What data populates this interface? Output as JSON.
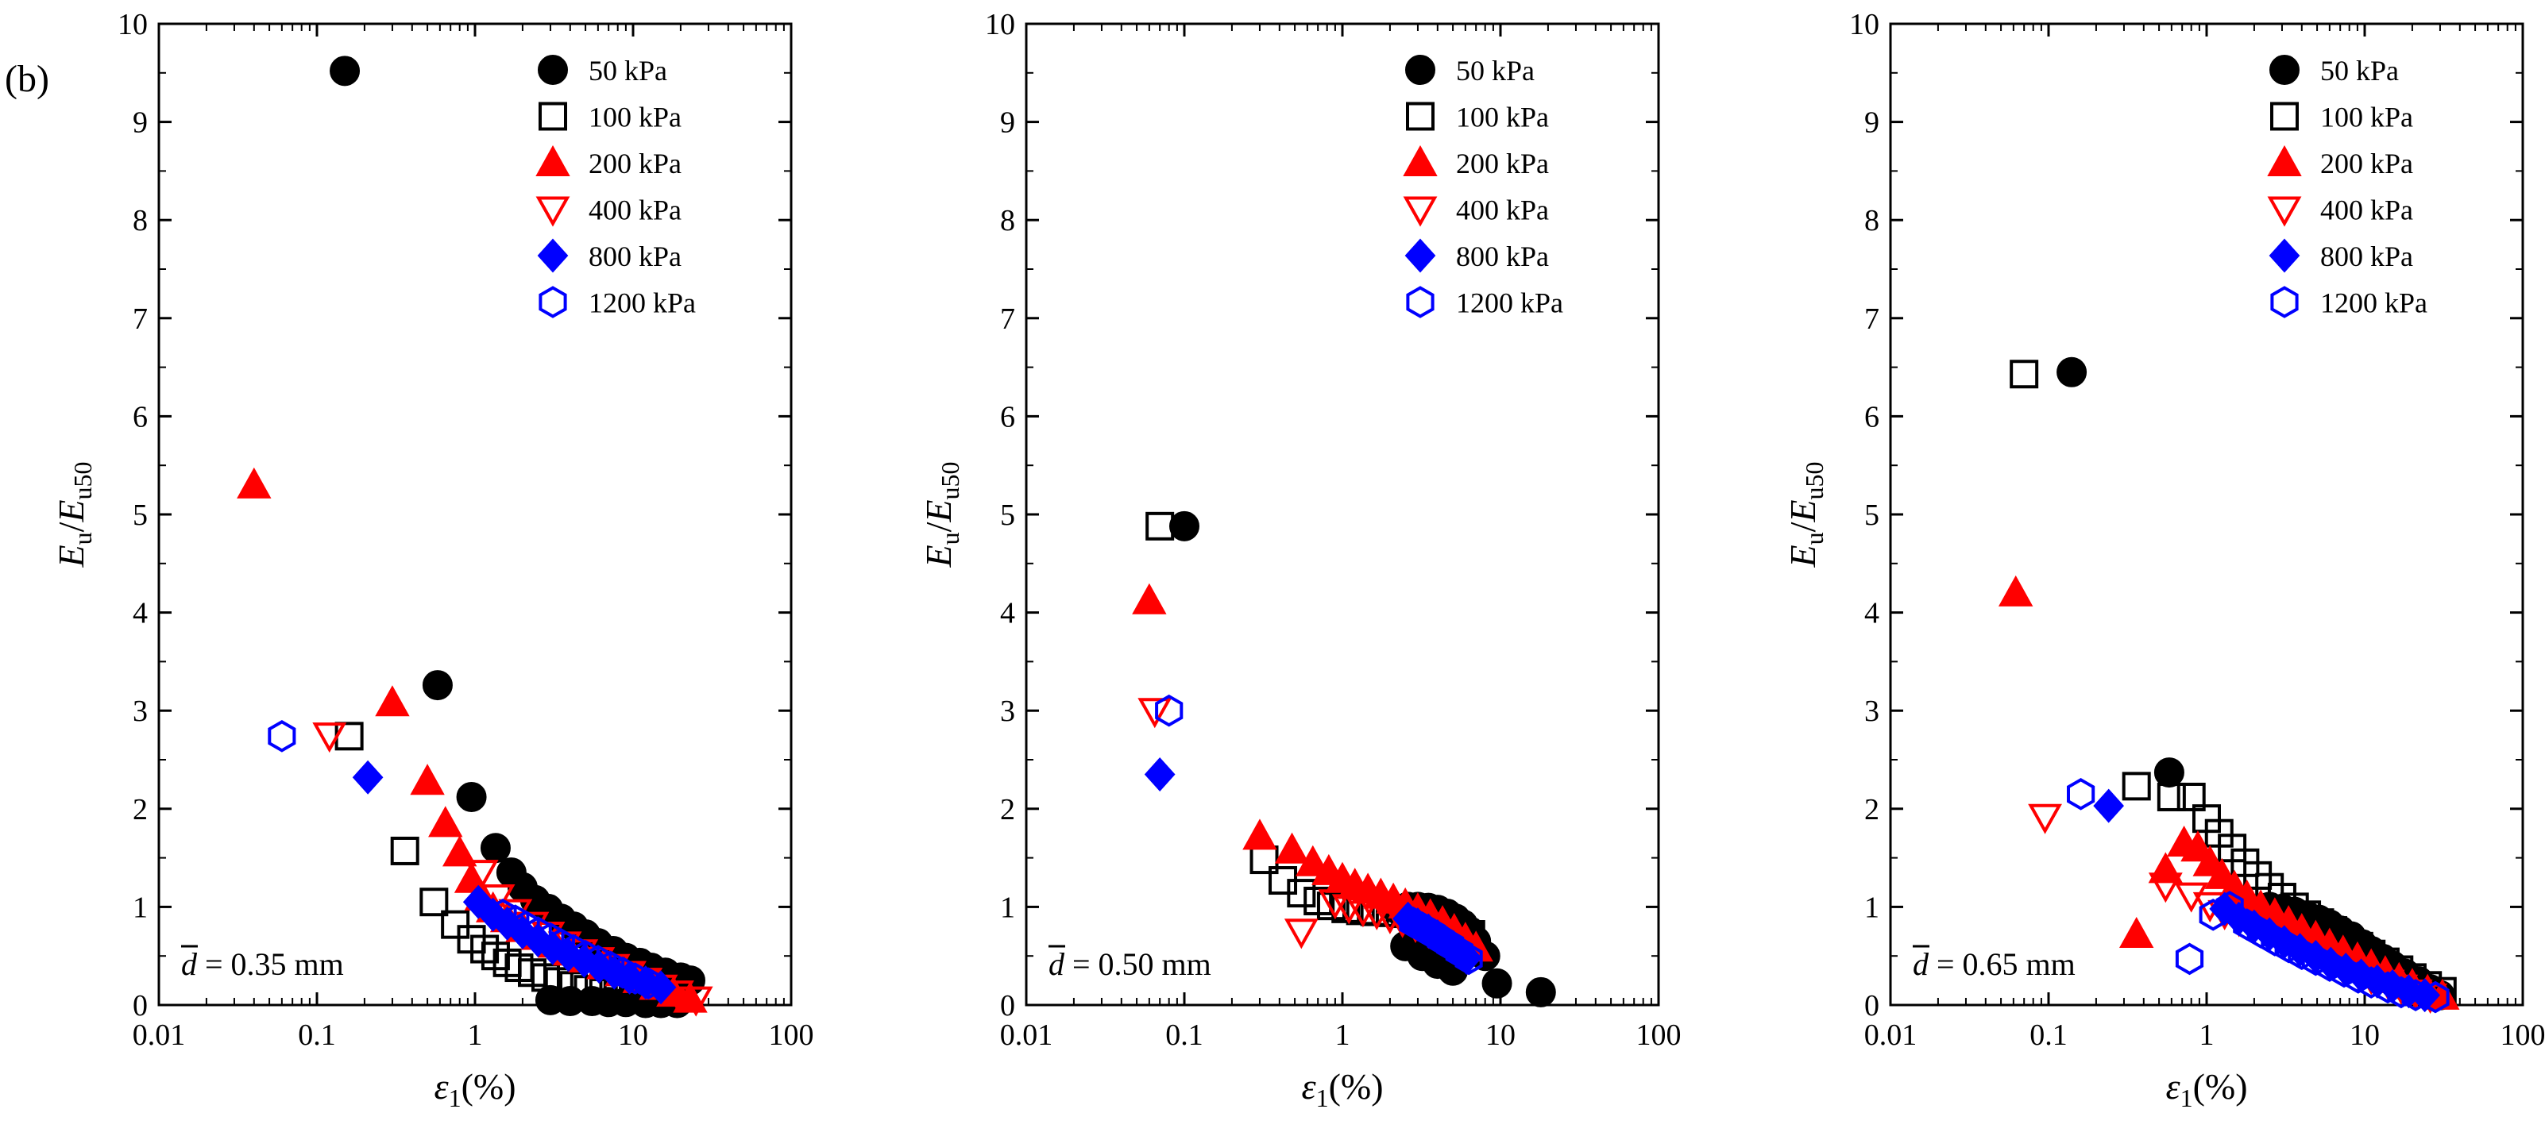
{
  "panel_label": "(b)",
  "chart_data": [
    {
      "type": "scatter",
      "annotation": {
        "symbol": "d",
        "text": " = 0.35 mm"
      },
      "xlabel": {
        "symbol": "ε",
        "sub": "1",
        "rest": "(%)"
      },
      "ylabel": {
        "main": "E",
        "sub1": "u",
        "mid": "/",
        "main2": "E",
        "sub2": "u50"
      },
      "x_scale": "log",
      "xlim": [
        0.01,
        100
      ],
      "ylim": [
        0,
        10
      ],
      "x_ticks": [
        "0.01",
        "0.1",
        "1",
        "10",
        "100"
      ],
      "y_ticks": [
        "0",
        "1",
        "2",
        "3",
        "4",
        "5",
        "6",
        "7",
        "8",
        "9",
        "10"
      ],
      "legend_position": "top-right",
      "series": [
        {
          "name": "50 kPa",
          "marker": "circle-filled",
          "color": "#000000",
          "x": [
            0.15,
            0.58,
            0.95,
            1.35,
            1.7,
            2.0,
            2.4,
            2.9,
            3.5,
            4.2,
            5.0,
            6.0,
            7.5,
            9.0,
            11,
            13,
            16,
            20,
            23,
            3.0,
            4.0,
            5.5,
            7.0,
            9.0,
            12,
            15,
            19
          ],
          "y": [
            9.52,
            3.26,
            2.12,
            1.6,
            1.35,
            1.2,
            1.07,
            0.98,
            0.88,
            0.8,
            0.72,
            0.63,
            0.55,
            0.48,
            0.43,
            0.38,
            0.33,
            0.28,
            0.25,
            0.05,
            0.04,
            0.04,
            0.03,
            0.03,
            0.02,
            0.02,
            0.02
          ]
        },
        {
          "name": "100 kPa",
          "marker": "square-open",
          "color": "#000000",
          "x": [
            0.16,
            0.36,
            0.55,
            0.75,
            0.95,
            1.15,
            1.35,
            1.6,
            1.9,
            2.3,
            2.8,
            3.4,
            4.2,
            5.2,
            6.5,
            8.0,
            10
          ],
          "y": [
            2.74,
            1.57,
            1.05,
            0.82,
            0.67,
            0.57,
            0.5,
            0.43,
            0.38,
            0.33,
            0.28,
            0.24,
            0.2,
            0.16,
            0.13,
            0.1,
            0.08
          ]
        },
        {
          "name": "200 kPa",
          "marker": "triangle-up-filled",
          "color": "#ff0000",
          "x": [
            0.04,
            0.3,
            0.5,
            0.65,
            0.8,
            0.95,
            1.1,
            1.3,
            1.6,
            2.0,
            2.5,
            3.2,
            4.0,
            5.0,
            6.5,
            8.5,
            11,
            14,
            18,
            23
          ],
          "y": [
            5.3,
            3.08,
            2.28,
            1.85,
            1.55,
            1.28,
            1.1,
            0.98,
            0.88,
            0.78,
            0.7,
            0.62,
            0.54,
            0.47,
            0.4,
            0.33,
            0.26,
            0.19,
            0.12,
            0.06
          ]
        },
        {
          "name": "400 kPa",
          "marker": "triangle-down-open",
          "color": "#ff0000",
          "x": [
            0.12,
            1.1,
            1.4,
            1.8,
            2.3,
            2.9,
            3.7,
            4.7,
            6.0,
            7.5,
            9.5,
            12,
            15,
            19,
            25
          ],
          "y": [
            2.75,
            1.35,
            1.1,
            0.95,
            0.82,
            0.72,
            0.62,
            0.54,
            0.46,
            0.39,
            0.32,
            0.25,
            0.18,
            0.12,
            0.06
          ]
        },
        {
          "name": "800 kPa",
          "marker": "diamond-filled",
          "color": "#0000ff",
          "x": [
            0.21,
            1.05,
            1.3,
            1.6,
            2.0,
            2.5,
            3.1,
            3.9,
            4.9,
            6.1,
            7.6,
            9.5,
            12,
            15
          ],
          "y": [
            2.32,
            1.05,
            0.92,
            0.83,
            0.74,
            0.66,
            0.58,
            0.51,
            0.45,
            0.39,
            0.33,
            0.28,
            0.23,
            0.18
          ]
        },
        {
          "name": "1200 kPa",
          "marker": "hexagon-open",
          "color": "#0000ff",
          "x": [
            0.06,
            1.5,
            1.8,
            2.1,
            2.5,
            3.0,
            3.5,
            4.2,
            5.0,
            6.0,
            7.2,
            8.6,
            10.3,
            12.5
          ],
          "y": [
            2.74,
            0.92,
            0.86,
            0.8,
            0.74,
            0.68,
            0.62,
            0.56,
            0.5,
            0.45,
            0.39,
            0.33,
            0.27,
            0.22
          ]
        }
      ]
    },
    {
      "type": "scatter",
      "annotation": {
        "symbol": "d",
        "text": " = 0.50 mm"
      },
      "xlabel": {
        "symbol": "ε",
        "sub": "1",
        "rest": "(%)"
      },
      "ylabel": {
        "main": "E",
        "sub1": "u",
        "mid": "/",
        "main2": "E",
        "sub2": "u50"
      },
      "x_scale": "log",
      "xlim": [
        0.01,
        100
      ],
      "ylim": [
        0,
        10
      ],
      "x_ticks": [
        "0.01",
        "0.1",
        "1",
        "10",
        "100"
      ],
      "y_ticks": [
        "0",
        "1",
        "2",
        "3",
        "4",
        "5",
        "6",
        "7",
        "8",
        "9",
        "10"
      ],
      "legend_position": "top-right",
      "series": [
        {
          "name": "50 kPa",
          "marker": "circle-filled",
          "color": "#000000",
          "x": [
            0.1,
            2.2,
            2.6,
            3.0,
            3.5,
            4.0,
            4.6,
            5.2,
            5.8,
            6.4,
            7.0,
            8.0,
            9.5,
            18,
            2.5,
            3.2,
            4.0,
            5.0
          ],
          "y": [
            4.88,
            0.98,
            1.0,
            1.0,
            0.99,
            0.97,
            0.93,
            0.88,
            0.82,
            0.75,
            0.65,
            0.5,
            0.22,
            0.13,
            0.6,
            0.5,
            0.42,
            0.35
          ]
        },
        {
          "name": "100 kPa",
          "marker": "square-open",
          "color": "#000000",
          "x": [
            0.07,
            0.32,
            0.42,
            0.55,
            0.7,
            0.85,
            1.05,
            1.3,
            1.6,
            2.0,
            2.5,
            3.1,
            3.8,
            4.6,
            5.5,
            6.5
          ],
          "y": [
            4.88,
            1.48,
            1.27,
            1.14,
            1.06,
            1.01,
            0.98,
            0.96,
            0.95,
            0.94,
            0.93,
            0.9,
            0.86,
            0.82,
            0.77,
            0.72
          ]
        },
        {
          "name": "200 kPa",
          "marker": "triangle-up-filled",
          "color": "#ff0000",
          "x": [
            0.06,
            0.3,
            0.48,
            0.65,
            0.82,
            1.0,
            1.2,
            1.45,
            1.75,
            2.1,
            2.5,
            3.0,
            3.6,
            4.3,
            5.1,
            6.0,
            7.0
          ],
          "y": [
            4.12,
            1.72,
            1.58,
            1.45,
            1.36,
            1.28,
            1.22,
            1.17,
            1.12,
            1.07,
            1.02,
            0.97,
            0.91,
            0.84,
            0.76,
            0.67,
            0.58
          ]
        },
        {
          "name": "400 kPa",
          "marker": "triangle-down-open",
          "color": "#ff0000",
          "x": [
            0.065,
            0.55,
            0.9,
            1.1,
            1.35,
            1.65,
            2.0,
            2.4,
            2.9,
            3.5,
            4.2,
            5.0,
            6.0
          ],
          "y": [
            3.0,
            0.75,
            1.05,
            1.0,
            0.97,
            0.94,
            0.9,
            0.86,
            0.81,
            0.75,
            0.68,
            0.6,
            0.51
          ]
        },
        {
          "name": "800 kPa",
          "marker": "diamond-filled",
          "color": "#0000ff",
          "x": [
            0.07,
            2.6,
            3.0,
            3.5,
            4.0,
            4.6,
            5.3,
            6.1
          ],
          "y": [
            2.35,
            0.88,
            0.82,
            0.76,
            0.7,
            0.63,
            0.56,
            0.48
          ]
        },
        {
          "name": "1200 kPa",
          "marker": "hexagon-open",
          "color": "#0000ff",
          "x": [
            0.08,
            2.8,
            3.2,
            3.7,
            4.2,
            4.8,
            5.5,
            6.3
          ],
          "y": [
            3.0,
            0.84,
            0.79,
            0.73,
            0.67,
            0.61,
            0.54,
            0.47
          ]
        }
      ]
    },
    {
      "type": "scatter",
      "annotation": {
        "symbol": "d",
        "text": " = 0.65 mm"
      },
      "xlabel": {
        "symbol": "ε",
        "sub": "1",
        "rest": "(%)"
      },
      "ylabel": {
        "main": "E",
        "sub1": "u",
        "mid": "/",
        "main2": "E",
        "sub2": "u50"
      },
      "x_scale": "log",
      "xlim": [
        0.01,
        100
      ],
      "ylim": [
        0,
        10
      ],
      "x_ticks": [
        "0.01",
        "0.1",
        "1",
        "10",
        "100"
      ],
      "y_ticks": [
        "0",
        "1",
        "2",
        "3",
        "4",
        "5",
        "6",
        "7",
        "8",
        "9",
        "10"
      ],
      "legend_position": "top-right",
      "series": [
        {
          "name": "50 kPa",
          "marker": "circle-filled",
          "color": "#000000",
          "x": [
            0.14,
            0.58,
            2.5,
            3.0,
            3.6,
            4.3,
            5.1,
            6.0,
            7.0,
            8.2,
            9.6,
            11,
            13,
            15,
            18,
            22,
            26,
            30
          ],
          "y": [
            6.45,
            2.37,
            1.0,
            0.98,
            0.95,
            0.91,
            0.87,
            0.82,
            0.76,
            0.7,
            0.62,
            0.55,
            0.47,
            0.4,
            0.32,
            0.24,
            0.16,
            0.1
          ]
        },
        {
          "name": "100 kPa",
          "marker": "square-open",
          "color": "#000000",
          "x": [
            0.07,
            0.36,
            0.6,
            0.8,
            1.0,
            1.2,
            1.45,
            1.75,
            2.1,
            2.5,
            3.0,
            3.6,
            4.3,
            5.2,
            6.3,
            7.6,
            9.2,
            11,
            13.5,
            16.5,
            20,
            25,
            31
          ],
          "y": [
            6.43,
            2.23,
            2.12,
            2.12,
            1.9,
            1.75,
            1.6,
            1.45,
            1.32,
            1.2,
            1.1,
            1.0,
            0.92,
            0.84,
            0.76,
            0.68,
            0.6,
            0.52,
            0.44,
            0.36,
            0.28,
            0.2,
            0.14
          ]
        },
        {
          "name": "200 kPa",
          "marker": "triangle-up-filled",
          "color": "#ff0000",
          "x": [
            0.062,
            0.36,
            0.55,
            0.72,
            0.88,
            1.05,
            1.25,
            1.5,
            1.8,
            2.2,
            2.7,
            3.3,
            4.0,
            4.9,
            6.0,
            7.3,
            9.0,
            11,
            13.5,
            16.5,
            20,
            25,
            31
          ],
          "y": [
            4.2,
            0.72,
            1.38,
            1.65,
            1.6,
            1.45,
            1.32,
            1.2,
            1.1,
            1.0,
            0.92,
            0.84,
            0.76,
            0.69,
            0.61,
            0.54,
            0.47,
            0.4,
            0.33,
            0.26,
            0.2,
            0.14,
            0.09
          ]
        },
        {
          "name": "400 kPa",
          "marker": "triangle-down-open",
          "color": "#ff0000",
          "x": [
            0.095,
            0.55,
            0.8,
            1.05,
            1.3,
            1.6,
            2.0,
            2.5,
            3.1,
            3.8,
            4.7,
            5.8,
            7.2,
            9.0,
            11,
            14,
            17,
            21,
            26
          ],
          "y": [
            1.92,
            1.22,
            1.12,
            1.02,
            0.94,
            0.87,
            0.8,
            0.73,
            0.66,
            0.59,
            0.52,
            0.46,
            0.4,
            0.34,
            0.28,
            0.23,
            0.18,
            0.13,
            0.09
          ]
        },
        {
          "name": "800 kPa",
          "marker": "diamond-filled",
          "color": "#0000ff",
          "x": [
            0.24,
            1.3,
            1.6,
            2.0,
            2.5,
            3.1,
            3.9,
            4.9,
            6.1,
            7.6,
            9.5,
            12,
            15,
            19,
            24
          ],
          "y": [
            2.03,
            0.98,
            0.88,
            0.8,
            0.72,
            0.64,
            0.56,
            0.49,
            0.42,
            0.36,
            0.3,
            0.24,
            0.19,
            0.14,
            0.1
          ]
        },
        {
          "name": "1200 kPa",
          "marker": "hexagon-open",
          "color": "#0000ff",
          "x": [
            0.16,
            0.78,
            1.1,
            1.4,
            1.8,
            2.2,
            2.7,
            3.3,
            4.0,
            4.9,
            6.0,
            7.4,
            9.1,
            11,
            14,
            17,
            21,
            28
          ],
          "y": [
            2.15,
            0.47,
            0.92,
            1.0,
            0.82,
            0.74,
            0.66,
            0.59,
            0.52,
            0.46,
            0.4,
            0.34,
            0.28,
            0.23,
            0.18,
            0.13,
            0.1,
            0.08
          ]
        }
      ]
    }
  ]
}
